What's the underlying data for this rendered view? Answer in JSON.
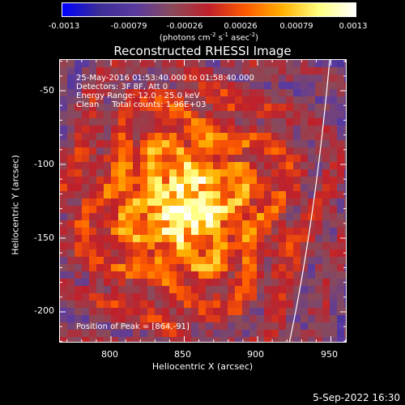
{
  "colorbar": {
    "tick_labels": [
      "-0.0013",
      "-0.00079",
      "-0.00026",
      "0.00026",
      "0.00079",
      "0.0013"
    ],
    "units_label": "(photons cm-2 s-1 asec-2)"
  },
  "plot": {
    "title": "Reconstructed RHESSI Image",
    "info_lines": [
      "25-May-2016 01:53:40.000 to 01:58:40.000",
      "Detectors: 3F 8F, Att 0",
      "Energy Range: 12.0 - 25.0 keV",
      "Clean     Total counts: 1.96E+03"
    ],
    "peak_label": "Position of Peak = [864,-91]",
    "x_tick_labels": [
      "800",
      "850",
      "900",
      "950"
    ],
    "y_tick_labels": [
      "-50",
      "-100",
      "-150",
      "-200"
    ],
    "xlabel": "Heliocentric X (arcsec)",
    "ylabel": "Heliocentric Y (arcsec)"
  },
  "footer": {
    "timestamp": "5-Sep-2022 16:30"
  },
  "colors": {
    "background": "#000000",
    "foreground": "#ffffff",
    "colormap": [
      "#0000ff",
      "#3b2d96",
      "#5a3aa0",
      "#8a4a5a",
      "#c0202a",
      "#ff5a00",
      "#ffb000",
      "#ffff80",
      "#ffffff"
    ]
  }
}
